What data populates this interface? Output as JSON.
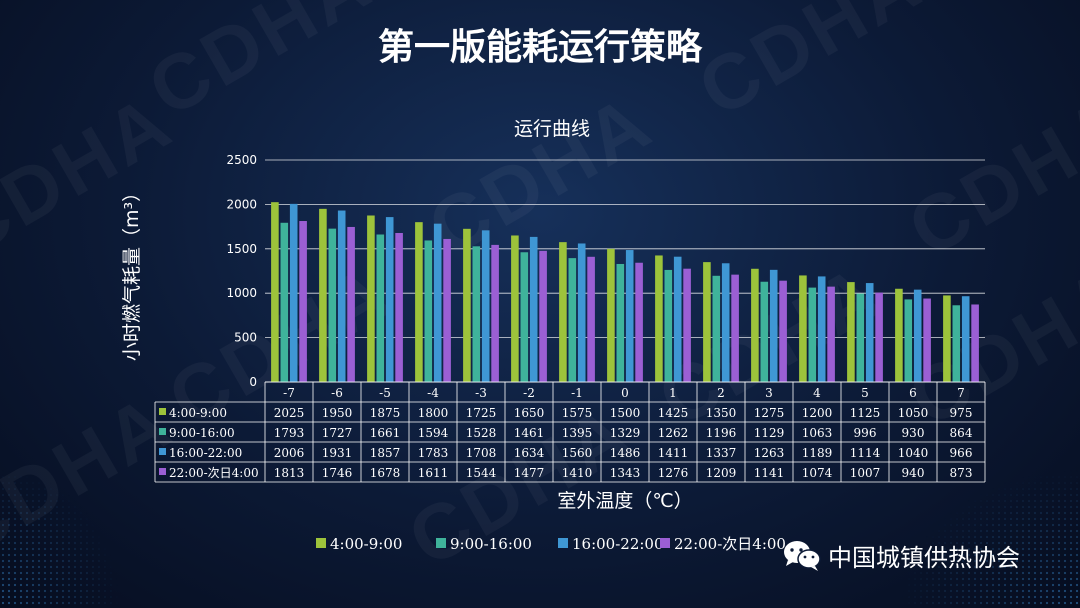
{
  "page_title": "第一版能耗运行策略",
  "watermark_text": "CDHA",
  "organization": "中国城镇供热协会",
  "icon": "wechat-icon",
  "colors": {
    "title": "#ffffff",
    "grid": "#ffffff",
    "axis_text": "#ffffff"
  },
  "chart_data": {
    "type": "bar",
    "title": "运行曲线",
    "xlabel": "室外温度（℃）",
    "ylabel": "小时燃气耗量（m³）",
    "ylim": [
      0,
      2500
    ],
    "yticks": [
      0,
      500,
      1000,
      1500,
      2000,
      2500
    ],
    "grid": true,
    "legend_position": "bottom",
    "categories": [
      "-7",
      "-6",
      "-5",
      "-4",
      "-3",
      "-2",
      "-1",
      "0",
      "1",
      "2",
      "3",
      "4",
      "5",
      "6",
      "7"
    ],
    "series": [
      {
        "name": "4:00-9:00",
        "color": "#9dc33b",
        "values": [
          2025,
          1950,
          1875,
          1800,
          1725,
          1650,
          1575,
          1500,
          1425,
          1350,
          1275,
          1200,
          1125,
          1050,
          975
        ]
      },
      {
        "name": "9:00-16:00",
        "color": "#3fb39b",
        "values": [
          1793,
          1727,
          1661,
          1594,
          1528,
          1461,
          1395,
          1329,
          1262,
          1196,
          1129,
          1063,
          996,
          930,
          864
        ]
      },
      {
        "name": "16:00-22:00",
        "color": "#3f97d4",
        "values": [
          2006,
          1931,
          1857,
          1783,
          1708,
          1634,
          1560,
          1486,
          1411,
          1337,
          1263,
          1189,
          1114,
          1040,
          966
        ]
      },
      {
        "name": "22:00-次日4:00",
        "color": "#9b5fd4",
        "values": [
          1813,
          1746,
          1678,
          1611,
          1544,
          1477,
          1410,
          1343,
          1276,
          1209,
          1141,
          1074,
          1007,
          940,
          873
        ]
      }
    ]
  }
}
